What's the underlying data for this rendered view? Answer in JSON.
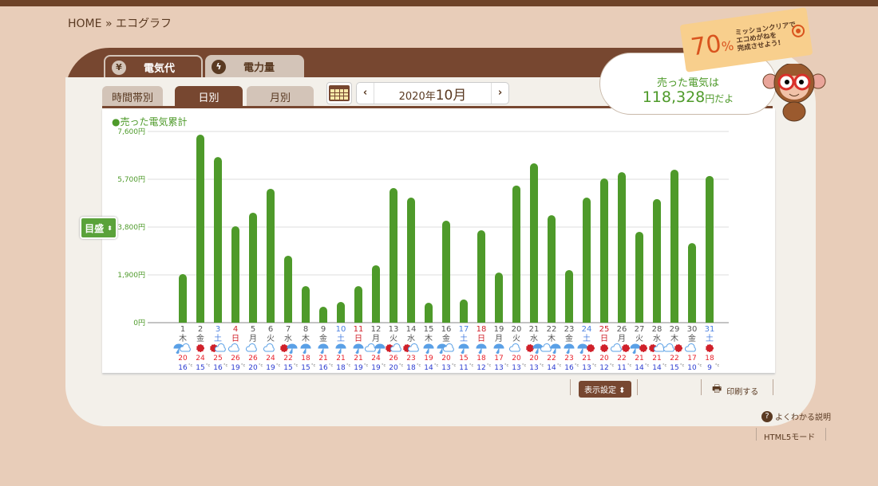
{
  "breadcrumb": {
    "home": "HOME",
    "sep": "»",
    "current": "エコグラフ"
  },
  "main_tabs": [
    {
      "label": "電気代",
      "icon": "yen-icon",
      "active": true
    },
    {
      "label": "電力量",
      "icon": "lightning-icon",
      "active": false
    }
  ],
  "sub_tabs": [
    {
      "label": "時間帯別",
      "active": false
    },
    {
      "label": "日別",
      "active": true
    },
    {
      "label": "月別",
      "active": false
    }
  ],
  "month_nav": {
    "prev": "‹",
    "year": "2020年",
    "month": "10月",
    "next": "›"
  },
  "mission_tag": {
    "percent": "70",
    "unit": "%",
    "line1": "ミッションクリアで",
    "line2": "エコめがねを",
    "line3": "完成させよう!"
  },
  "bubble": {
    "line1": "売った電気は",
    "amount": "118,328",
    "suffix": "円だよ"
  },
  "meyasu_button": "目盛",
  "colors": {
    "bar": "#4e9a2a",
    "brown": "#774730",
    "saturday": "#4a7fe0",
    "sunday": "#d0202a",
    "high_temp": "#e8202a",
    "low_temp": "#2a3ad0"
  },
  "chart_data": {
    "type": "bar",
    "legend": "●売った電気累計",
    "yticks": [
      "7,600円",
      "5,700円",
      "3,800円",
      "1,900円",
      "0円"
    ],
    "ylim": [
      0,
      7600
    ],
    "grid": true,
    "categories": [
      "1",
      "2",
      "3",
      "4",
      "5",
      "6",
      "7",
      "8",
      "9",
      "10",
      "11",
      "12",
      "13",
      "14",
      "15",
      "16",
      "17",
      "18",
      "19",
      "20",
      "21",
      "22",
      "23",
      "24",
      "25",
      "26",
      "27",
      "28",
      "29",
      "30",
      "31"
    ],
    "weekdays": [
      "木",
      "金",
      "土",
      "日",
      "月",
      "火",
      "水",
      "木",
      "金",
      "土",
      "日",
      "月",
      "火",
      "水",
      "木",
      "金",
      "土",
      "日",
      "月",
      "火",
      "水",
      "木",
      "金",
      "土",
      "日",
      "月",
      "火",
      "水",
      "木",
      "金",
      "土"
    ],
    "values": [
      1900,
      7440,
      6550,
      3800,
      4340,
      5290,
      2630,
      1420,
      600,
      790,
      1420,
      2250,
      5320,
      4940,
      760,
      4020,
      890,
      3640,
      1960,
      5420,
      6300,
      4240,
      2060,
      4940,
      5700,
      5950,
      3580,
      4880,
      6050,
      3130,
      5800
    ],
    "weather": [
      "rain-cloud",
      "sun",
      "sun-cloud",
      "cloud",
      "cloud",
      "cloud",
      "sun-rain",
      "rain",
      "rain",
      "rain",
      "rain",
      "cloud-rain",
      "sun-cloud",
      "sun-cloud",
      "rain",
      "rain-cloud",
      "rain",
      "rain",
      "rain",
      "cloud",
      "sun-rain",
      "cloud-rain",
      "rain",
      "rain-sun",
      "sun",
      "cloud-sun",
      "rain-sun",
      "sun-cloud",
      "cloud-sun",
      "cloud",
      "sun"
    ],
    "high_temps": [
      "20",
      "24",
      "25",
      "26",
      "26",
      "24",
      "22",
      "18",
      "21",
      "21",
      "21",
      "24",
      "26",
      "23",
      "19",
      "20",
      "15",
      "18",
      "17",
      "20",
      "20",
      "22",
      "23",
      "21",
      "20",
      "22",
      "21",
      "21",
      "22",
      "17",
      "18"
    ],
    "low_temps": [
      "16",
      "15",
      "16",
      "19",
      "20",
      "19",
      "15",
      "15",
      "16",
      "18",
      "19",
      "19",
      "20",
      "18",
      "14",
      "13",
      "11",
      "12",
      "13",
      "13",
      "13",
      "14",
      "16",
      "13",
      "12",
      "11",
      "14",
      "14",
      "15",
      "10",
      "9"
    ],
    "temp_unit": "°c"
  },
  "footer": {
    "display_settings": "表示設定",
    "print": "印刷する",
    "help": "よくわかる説明",
    "html5": "HTML5モード"
  }
}
